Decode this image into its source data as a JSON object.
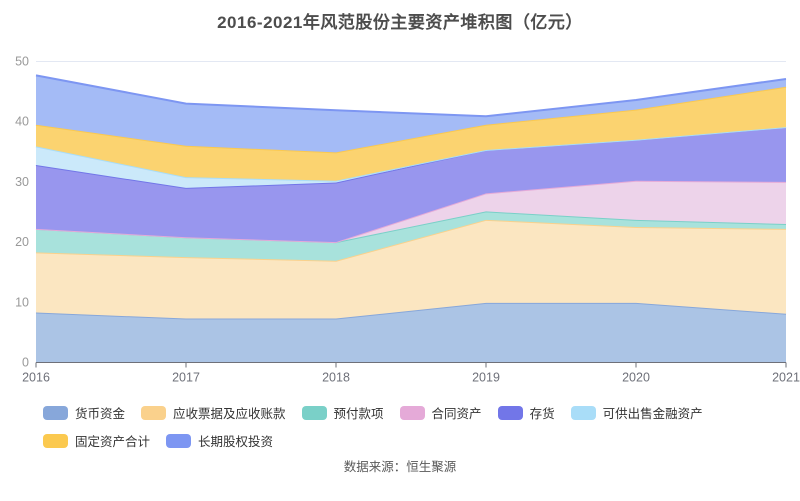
{
  "title": "2016-2021年风范股份主要资产堆积图（亿元）",
  "source": "数据来源：恒生聚源",
  "axis": {
    "x_labels": [
      "2016",
      "2017",
      "2018",
      "2019",
      "2020",
      "2021"
    ],
    "y_labels": [
      "0",
      "10",
      "20",
      "30",
      "40",
      "50"
    ],
    "y_label_color": "#999999",
    "x_label_color": "#6e7079",
    "axis_line_color": "#6e7079",
    "grid_line_color": "#e3e8f3"
  },
  "chart_data": {
    "type": "area",
    "stacked": true,
    "title": "2016-2021年风范股份主要资产堆积图（亿元）",
    "x": [
      2016,
      2017,
      2018,
      2019,
      2020,
      2021
    ],
    "series": [
      {
        "name": "货币资金",
        "values": [
          8.3,
          7.3,
          7.3,
          9.9,
          9.9,
          8.1
        ],
        "color": "#87a7da",
        "fill": "#abc4e5"
      },
      {
        "name": "应收票据及应收账款",
        "values": [
          10.0,
          10.2,
          9.6,
          13.8,
          12.6,
          14.1
        ],
        "color": "#fad18c",
        "fill": "#fbe6c1"
      },
      {
        "name": "预付款项",
        "values": [
          3.9,
          3.3,
          3.1,
          1.4,
          1.2,
          0.8
        ],
        "color": "#7ad0c8",
        "fill": "#a8e2dc"
      },
      {
        "name": "合同资产",
        "values": [
          0,
          0,
          0,
          3.0,
          6.5,
          7.0
        ],
        "color": "#e5aad8",
        "fill": "#edd3ea"
      },
      {
        "name": "存货",
        "values": [
          10.6,
          8.2,
          9.9,
          7.2,
          6.8,
          9.1
        ],
        "color": "#7276e8",
        "fill": "#9896ee"
      },
      {
        "name": "可供出售金融资产",
        "values": [
          3.1,
          1.8,
          0.3,
          0,
          0,
          0
        ],
        "color": "#a9ddf8",
        "fill": "#cbe9fa"
      },
      {
        "name": "固定资产合计",
        "values": [
          3.6,
          5.2,
          4.7,
          4.2,
          5.0,
          6.7
        ],
        "color": "#fbc94f",
        "fill": "#fbd370"
      },
      {
        "name": "长期股权投资",
        "values": [
          8.2,
          7.0,
          7.0,
          1.4,
          1.6,
          1.3
        ],
        "color": "#7d96f2",
        "fill": "#a4bbf6"
      }
    ],
    "ylim": [
      0,
      50
    ],
    "yticks": [
      0,
      10,
      20,
      30,
      40,
      50
    ],
    "grid": true,
    "legend_position": "bottom",
    "xlabel": "",
    "ylabel": ""
  }
}
